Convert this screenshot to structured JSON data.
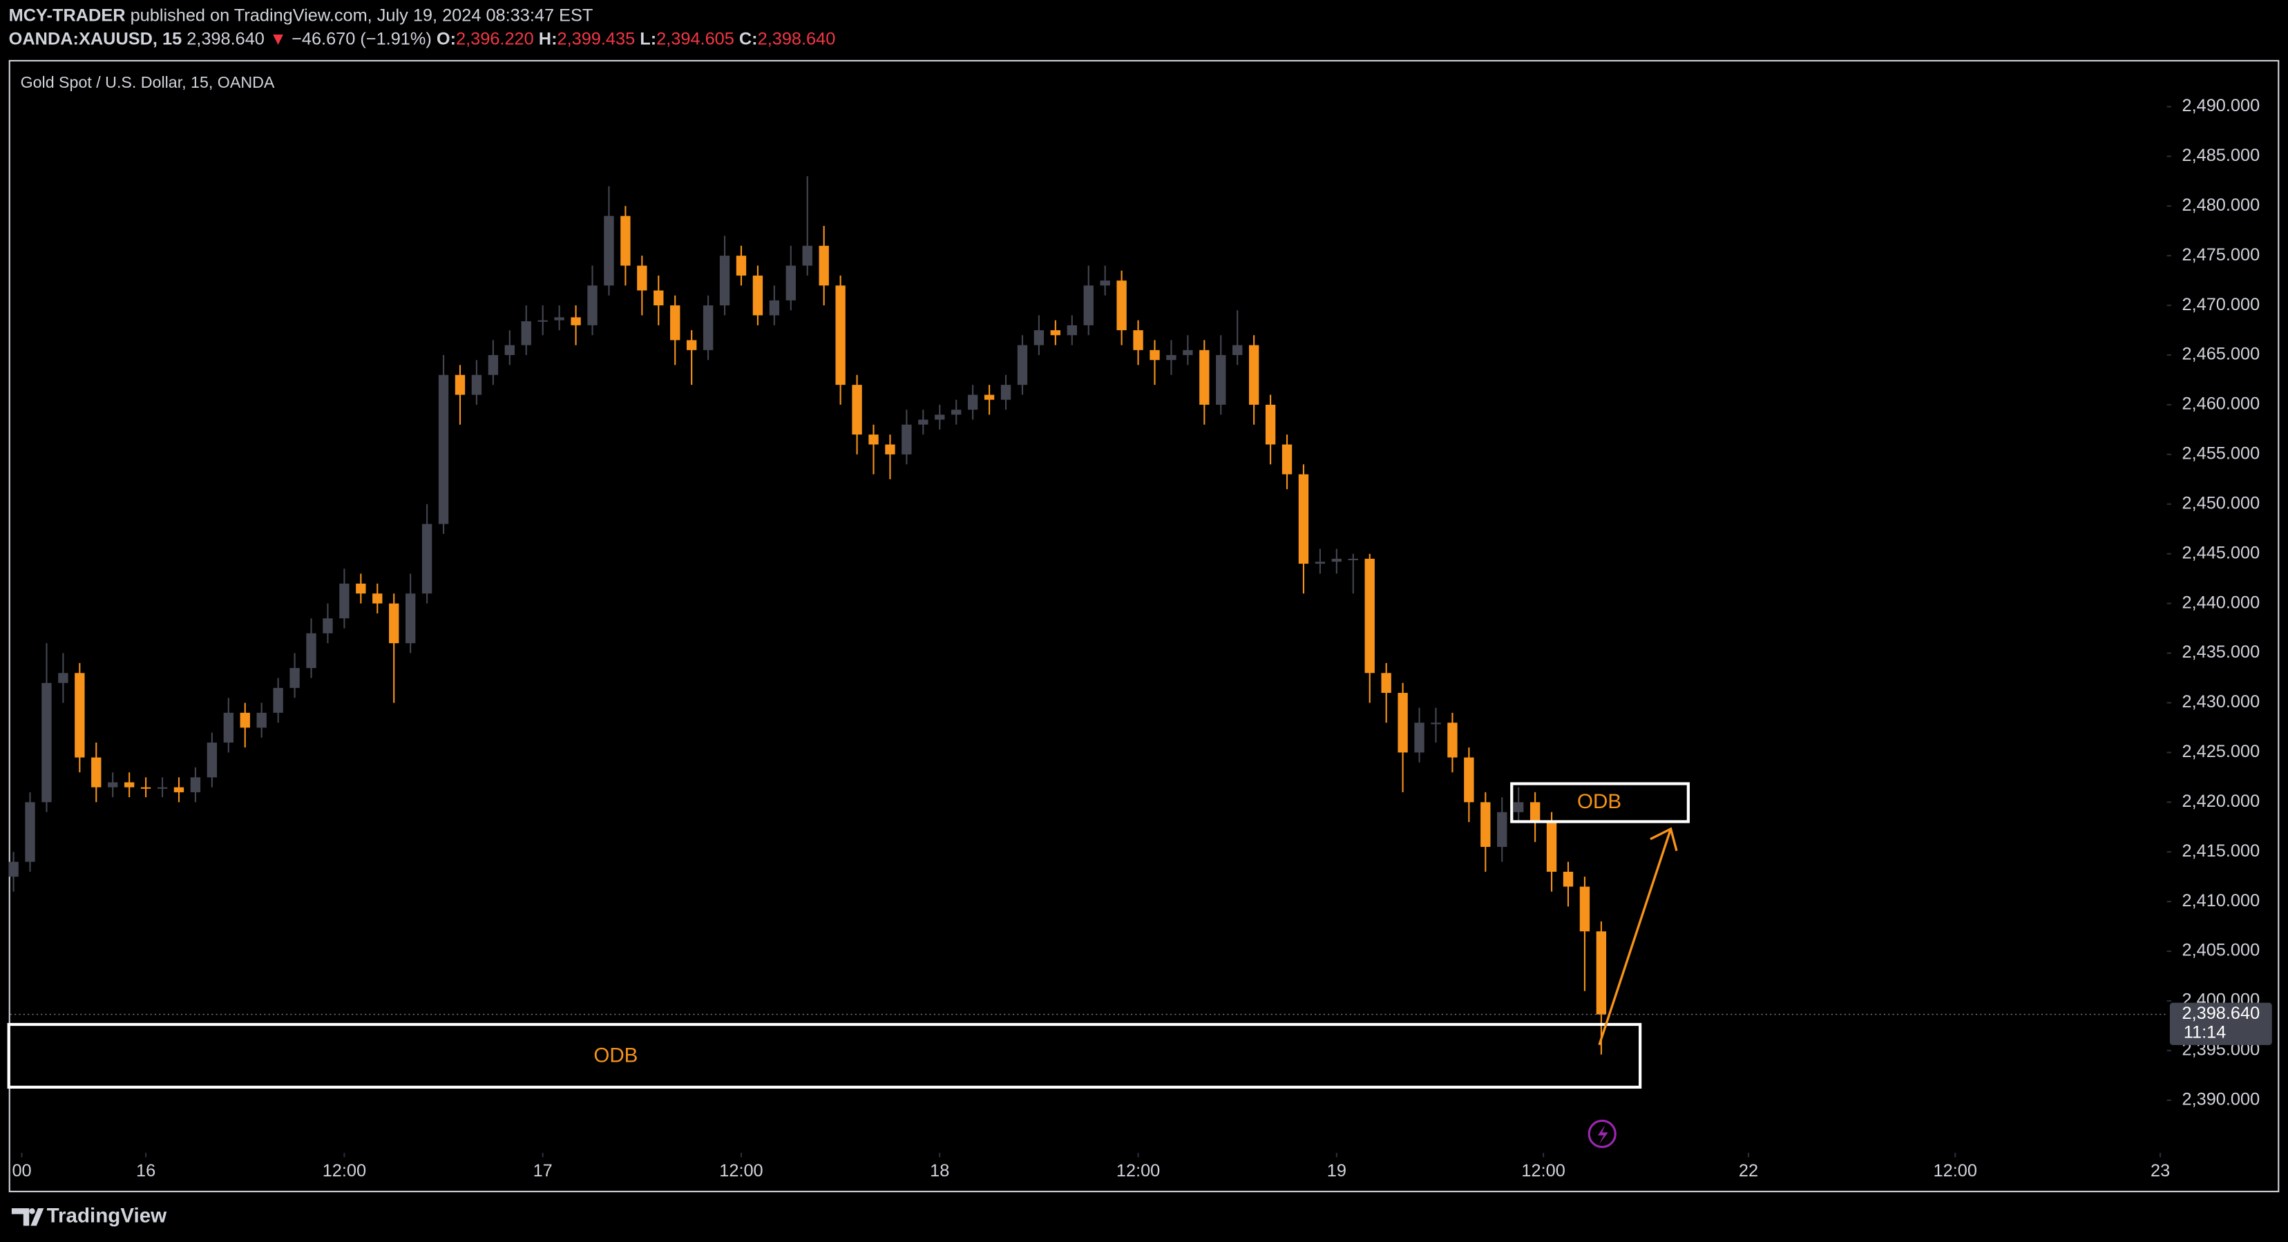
{
  "header": {
    "author": "MCY-TRADER",
    "published": "published on TradingView.com, July 19, 2024 08:33:47 EST",
    "symbol": "OANDA:XAUUSD, 15",
    "price": "2,398.640",
    "direction": "▼",
    "change": "−46.670 (−1.91%)",
    "open_label": "O:",
    "open": "2,396.220",
    "high_label": "H:",
    "high": "2,399.435",
    "low_label": "L:",
    "low": "2,394.605",
    "close_label": "C:",
    "close": "2,398.640"
  },
  "footer": {
    "brand": "TradingView"
  },
  "chart_data": {
    "type": "candlestick",
    "title": "Gold Spot / U.S. Dollar, 15, OANDA",
    "up_color": "#434651",
    "down_color": "#f7931a",
    "xlim": [
      -8.2,
      122.2
    ],
    "ylim": [
      2384.71,
      2494.55
    ],
    "xticks": [
      {
        "value": -7.5,
        "label": "00"
      },
      {
        "value": 0,
        "label": "16"
      },
      {
        "value": 12,
        "label": "12:00"
      },
      {
        "value": 24,
        "label": "17"
      },
      {
        "value": 36,
        "label": "12:00"
      },
      {
        "value": 48,
        "label": "18"
      },
      {
        "value": 60,
        "label": "12:00"
      },
      {
        "value": 72,
        "label": "19"
      },
      {
        "value": 84.5,
        "label": "12:00"
      },
      {
        "value": 96.9,
        "label": "22"
      },
      {
        "value": 109.4,
        "label": "12:00"
      },
      {
        "value": 121.8,
        "label": "23"
      }
    ],
    "yticks": [
      {
        "value": 2390,
        "label": "2,390.000"
      },
      {
        "value": 2395,
        "label": "2,395.000"
      },
      {
        "value": 2400,
        "label": "2,400.000"
      },
      {
        "value": 2405,
        "label": "2,405.000"
      },
      {
        "value": 2410,
        "label": "2,410.000"
      },
      {
        "value": 2415,
        "label": "2,415.000"
      },
      {
        "value": 2420,
        "label": "2,420.000"
      },
      {
        "value": 2425,
        "label": "2,425.000"
      },
      {
        "value": 2430,
        "label": "2,430.000"
      },
      {
        "value": 2435,
        "label": "2,435.000"
      },
      {
        "value": 2440,
        "label": "2,440.000"
      },
      {
        "value": 2445,
        "label": "2,445.000"
      },
      {
        "value": 2450,
        "label": "2,450.000"
      },
      {
        "value": 2455,
        "label": "2,455.000"
      },
      {
        "value": 2460,
        "label": "2,460.000"
      },
      {
        "value": 2465,
        "label": "2,465.000"
      },
      {
        "value": 2470,
        "label": "2,470.000"
      },
      {
        "value": 2475,
        "label": "2,475.000"
      },
      {
        "value": 2480,
        "label": "2,480.000"
      },
      {
        "value": 2485,
        "label": "2,485.000"
      },
      {
        "value": 2490,
        "label": "2,490.000"
      }
    ],
    "last_price": {
      "value": 2398.64,
      "label": "2,398.640"
    },
    "countdown": "11:14",
    "annotations": [
      "ODB",
      "ODB"
    ],
    "x": [
      -8,
      -7,
      -6,
      -5,
      -4,
      -3,
      -2,
      -1,
      0,
      1,
      2,
      3,
      4,
      5,
      6,
      7,
      8,
      9,
      10,
      11,
      12,
      13,
      14,
      15,
      16,
      17,
      18,
      19,
      20,
      21,
      22,
      23,
      24,
      25,
      26,
      27,
      28,
      29,
      30,
      31,
      32,
      33,
      34,
      35,
      36,
      37,
      38,
      39,
      40,
      41,
      42,
      43,
      44,
      45,
      46,
      47,
      48,
      49,
      50,
      51,
      52,
      53,
      54,
      55,
      56,
      57,
      58,
      59,
      60,
      61,
      62,
      63,
      64,
      65,
      66,
      67,
      68,
      69,
      70,
      71,
      72,
      73,
      74,
      75,
      76,
      77,
      78,
      79,
      80,
      81,
      82,
      83,
      84,
      85,
      86,
      87,
      88
    ],
    "candles": [
      [
        2412.5,
        2415,
        2411,
        2414
      ],
      [
        2414,
        2421,
        2413,
        2420
      ],
      [
        2420,
        2436,
        2419,
        2432
      ],
      [
        2432,
        2435,
        2430,
        2433
      ],
      [
        2433,
        2434,
        2423,
        2424.5
      ],
      [
        2424.5,
        2426,
        2420,
        2421.5
      ],
      [
        2421.5,
        2423,
        2420.5,
        2422
      ],
      [
        2422,
        2423,
        2420.5,
        2421.5
      ],
      [
        2421.5,
        2422.5,
        2420.5,
        2421.4
      ],
      [
        2421.4,
        2422.5,
        2420.5,
        2421.5
      ],
      [
        2421.5,
        2422.5,
        2420,
        2421
      ],
      [
        2421,
        2423.5,
        2420,
        2422.5
      ],
      [
        2422.5,
        2427,
        2421.5,
        2426
      ],
      [
        2426,
        2430.5,
        2425,
        2429
      ],
      [
        2429,
        2430,
        2425.5,
        2427.5
      ],
      [
        2427.5,
        2430,
        2426.5,
        2429
      ],
      [
        2429,
        2432.5,
        2428,
        2431.5
      ],
      [
        2431.5,
        2435,
        2430.5,
        2433.5
      ],
      [
        2433.5,
        2438.5,
        2432.5,
        2437
      ],
      [
        2437,
        2440,
        2436,
        2438.5
      ],
      [
        2438.5,
        2443.5,
        2437.5,
        2442
      ],
      [
        2442,
        2443,
        2440,
        2441
      ],
      [
        2441,
        2442,
        2439,
        2440
      ],
      [
        2440,
        2441,
        2430,
        2436
      ],
      [
        2436,
        2443,
        2435,
        2441
      ],
      [
        2441,
        2450,
        2440,
        2448
      ],
      [
        2448,
        2465,
        2447,
        2463
      ],
      [
        2463,
        2464,
        2458,
        2461
      ],
      [
        2461,
        2464.5,
        2460,
        2463
      ],
      [
        2463,
        2466.5,
        2462,
        2465
      ],
      [
        2465,
        2467.5,
        2464,
        2466
      ],
      [
        2466,
        2470,
        2465,
        2468.4
      ],
      [
        2468.4,
        2470,
        2467,
        2468.5
      ],
      [
        2468.5,
        2470,
        2467.5,
        2468.8
      ],
      [
        2468.8,
        2470,
        2466,
        2468
      ],
      [
        2468,
        2474,
        2467,
        2472
      ],
      [
        2472,
        2482,
        2471,
        2479
      ],
      [
        2479,
        2480,
        2472,
        2474
      ],
      [
        2474,
        2475,
        2469,
        2471.5
      ],
      [
        2471.5,
        2473,
        2468,
        2470
      ],
      [
        2470,
        2471,
        2464,
        2466.5
      ],
      [
        2466.5,
        2467.5,
        2462,
        2465.5
      ],
      [
        2465.5,
        2471,
        2464.5,
        2470
      ],
      [
        2470,
        2477,
        2469,
        2475
      ],
      [
        2475,
        2476,
        2472,
        2473
      ],
      [
        2473,
        2474,
        2468,
        2469
      ],
      [
        2469,
        2472,
        2468,
        2470.5
      ],
      [
        2470.5,
        2476,
        2469.5,
        2474
      ],
      [
        2474,
        2483,
        2473,
        2476
      ],
      [
        2476,
        2478,
        2470,
        2472
      ],
      [
        2472,
        2473,
        2460,
        2462
      ],
      [
        2462,
        2463,
        2455,
        2457
      ],
      [
        2457,
        2458,
        2453,
        2456
      ],
      [
        2456,
        2457,
        2452.5,
        2455
      ],
      [
        2455,
        2459.5,
        2454,
        2458
      ],
      [
        2458,
        2459.5,
        2457,
        2458.5
      ],
      [
        2458.5,
        2460,
        2457.5,
        2459
      ],
      [
        2459,
        2460.5,
        2458,
        2459.5
      ],
      [
        2459.5,
        2462,
        2458.5,
        2461
      ],
      [
        2461,
        2462,
        2459,
        2460.5
      ],
      [
        2460.5,
        2463,
        2459.5,
        2462
      ],
      [
        2462,
        2467,
        2461,
        2466
      ],
      [
        2466,
        2469,
        2465,
        2467.5
      ],
      [
        2467.5,
        2468.5,
        2466,
        2467
      ],
      [
        2467,
        2469,
        2466,
        2468
      ],
      [
        2468,
        2474,
        2467,
        2472
      ],
      [
        2472,
        2474,
        2471,
        2472.5
      ],
      [
        2472.5,
        2473.5,
        2466,
        2467.5
      ],
      [
        2467.5,
        2468.5,
        2464,
        2465.5
      ],
      [
        2465.5,
        2466.5,
        2462,
        2464.5
      ],
      [
        2464.5,
        2466.5,
        2463,
        2465
      ],
      [
        2465,
        2467,
        2464,
        2465.5
      ],
      [
        2465.5,
        2466.5,
        2458,
        2460
      ],
      [
        2460,
        2467,
        2459,
        2465
      ],
      [
        2465,
        2469.5,
        2464,
        2466
      ],
      [
        2466,
        2467,
        2458,
        2460
      ],
      [
        2460,
        2461,
        2454,
        2456
      ],
      [
        2456,
        2457,
        2451.5,
        2453
      ],
      [
        2453,
        2454,
        2441,
        2444
      ],
      [
        2444,
        2445.5,
        2443,
        2444.2
      ],
      [
        2444.2,
        2445.5,
        2443,
        2444.5
      ],
      [
        2444.5,
        2445,
        2441,
        2444.5
      ],
      [
        2444.5,
        2445,
        2430,
        2433
      ],
      [
        2433,
        2434,
        2428,
        2431
      ],
      [
        2431,
        2432,
        2421,
        2425
      ],
      [
        2425,
        2429.5,
        2424,
        2428
      ],
      [
        2428,
        2429.5,
        2426,
        2428
      ],
      [
        2428,
        2429,
        2423,
        2424.5
      ],
      [
        2424.5,
        2425.5,
        2418,
        2420
      ],
      [
        2420,
        2421,
        2413,
        2415.5
      ],
      [
        2415.5,
        2420.5,
        2414,
        2419
      ],
      [
        2419,
        2421.5,
        2418,
        2420
      ],
      [
        2420,
        2421,
        2416,
        2418
      ],
      [
        2418,
        2419,
        2411,
        2413
      ],
      [
        2413,
        2414,
        2409.5,
        2411.5
      ],
      [
        2411.5,
        2412.5,
        2401,
        2407
      ],
      [
        2407,
        2408,
        2394.6,
        2398.64
      ]
    ]
  }
}
